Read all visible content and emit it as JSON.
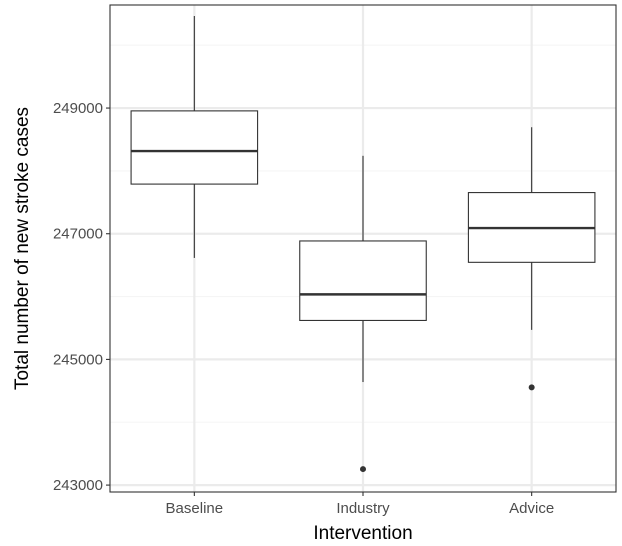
{
  "chart_data": {
    "type": "boxplot",
    "xlabel": "Intervention",
    "ylabel": "Total number of new stroke cases",
    "categories": [
      "Baseline",
      "Industry",
      "Advice"
    ],
    "y_ticks": [
      243000,
      245000,
      247000,
      249000
    ],
    "y_tick_labels": [
      "243000",
      "245000",
      "247000",
      "249000"
    ],
    "ylim": [
      242890,
      250640
    ],
    "grid": true,
    "boxes": [
      {
        "category": "Baseline",
        "whisker_low": 246615,
        "q1": 247790,
        "median": 248315,
        "q3": 248955,
        "whisker_high": 250465,
        "outliers": []
      },
      {
        "category": "Industry",
        "whisker_low": 244640,
        "q1": 245620,
        "median": 246035,
        "q3": 246885,
        "whisker_high": 248240,
        "outliers": [
          243255
        ]
      },
      {
        "category": "Advice",
        "whisker_low": 245470,
        "q1": 246545,
        "median": 247090,
        "q3": 247655,
        "whisker_high": 248695,
        "outliers": [
          244555
        ]
      }
    ]
  },
  "colors": {
    "panel_background": "#ffffff",
    "grid_major": "#ebebeb",
    "grid_minor": "#f5f5f5",
    "panel_border": "#333333",
    "box_stroke": "#333333",
    "tick_text": "#4d4d4d"
  }
}
